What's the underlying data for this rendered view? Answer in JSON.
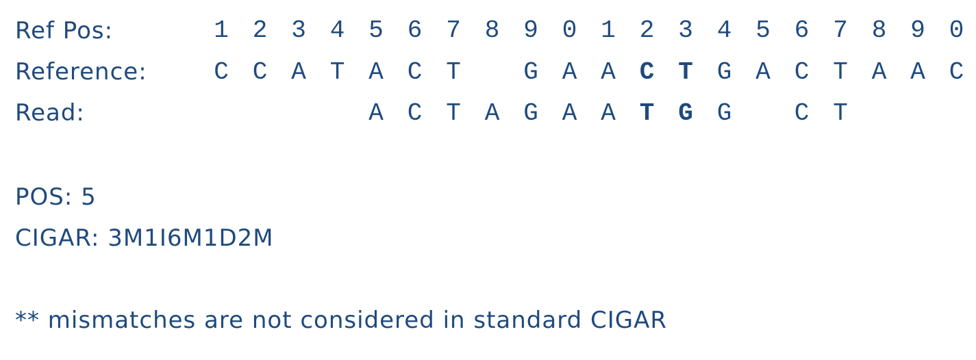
{
  "labels": {
    "ref_pos": "Ref Pos:",
    "reference": "Reference:",
    "read": "Read:"
  },
  "ref_pos_digits": [
    "1",
    "2",
    "3",
    "4",
    "5",
    "6",
    "7",
    "8",
    "9",
    "0",
    "1",
    "2",
    "3",
    "4",
    "5",
    "6",
    "7",
    "8",
    "9",
    "0"
  ],
  "reference_bases": [
    "C",
    "C",
    "A",
    "T",
    "A",
    "C",
    "T",
    "",
    "G",
    "A",
    "A",
    "C",
    "T",
    "G",
    "A",
    "C",
    "T",
    "A",
    "A",
    "C"
  ],
  "reference_bold": [
    11,
    12
  ],
  "read_bases": [
    "",
    "",
    "",
    "",
    "A",
    "C",
    "T",
    "A",
    "G",
    "A",
    "A",
    "T",
    "G",
    "G",
    "",
    "C",
    "T",
    "",
    "",
    ""
  ],
  "read_bold": [
    11,
    12
  ],
  "pos_line": "POS: 5",
  "cigar_line": "CIGAR: 3M1I6M1D2M",
  "note": "** mismatches are not considered in standard CIGAR",
  "colors": {
    "text": "#1f4a7d",
    "background": "#ffffff"
  }
}
